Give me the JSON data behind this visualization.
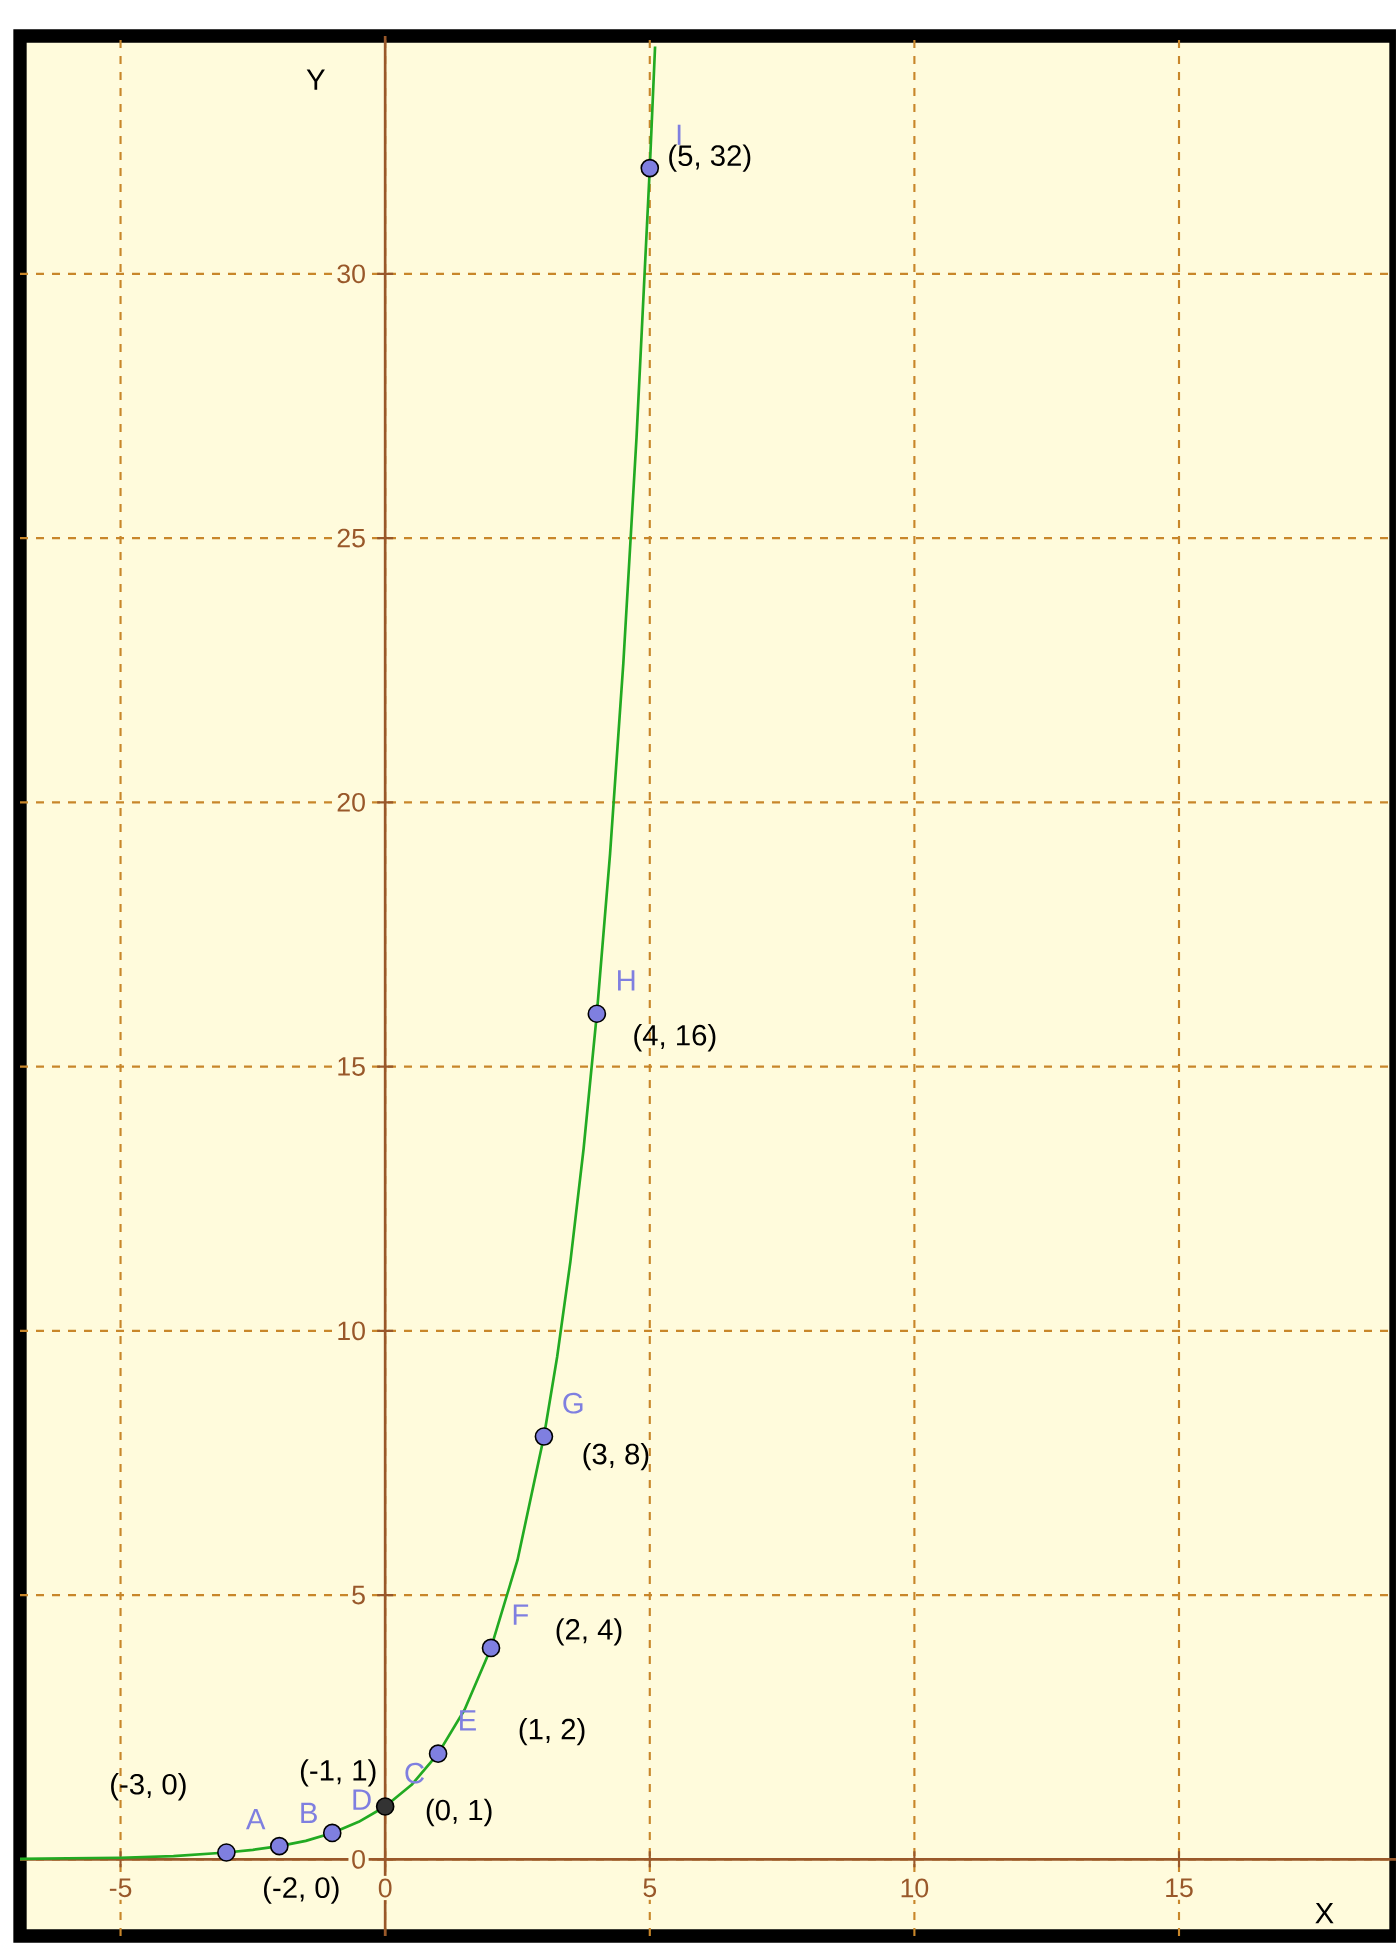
{
  "chart_data": {
    "type": "line",
    "xlabel": "X",
    "ylabel": "Y",
    "xlim": [
      -6.9,
      19.1
    ],
    "ylim": [
      -1.45,
      34.5
    ],
    "xticks": [
      -5,
      0,
      5,
      10,
      15
    ],
    "yticks": [
      0,
      5,
      10,
      15,
      20,
      25,
      30
    ],
    "grid": true,
    "series": [
      {
        "color": "#22aa22",
        "x": [
          -6.9,
          -6,
          -5,
          -4,
          -3,
          -2.5,
          -2,
          -1.5,
          -1,
          -0.5,
          0,
          0.5,
          1,
          1.5,
          2,
          2.5,
          3,
          3.25,
          3.5,
          3.75,
          4,
          4.25,
          4.5,
          4.75,
          5,
          5.1
        ],
        "values": [
          0.01,
          0.02,
          0.03,
          0.06,
          0.13,
          0.18,
          0.25,
          0.35,
          0.5,
          0.71,
          1,
          1.41,
          2,
          2.83,
          4,
          5.66,
          8,
          9.51,
          11.31,
          13.45,
          16,
          19.03,
          22.63,
          26.91,
          32,
          34.3
        ]
      },
      {
        "type": "scatter",
        "marker": "circle",
        "x": [
          -3,
          -2,
          -1,
          0,
          1,
          2,
          3,
          4,
          5
        ],
        "values": [
          0.13,
          0.25,
          0.5,
          1,
          2,
          4,
          8,
          16,
          32
        ],
        "colors": [
          "#7f7fe0",
          "#7f7fe0",
          "#7f7fe0",
          "#333333",
          "#7f7fe0",
          "#7f7fe0",
          "#7f7fe0",
          "#7f7fe0",
          "#7f7fe0"
        ],
        "color": "#7f7fe0",
        "value_labels": [
          "A",
          "B",
          "D",
          "C",
          "E",
          "F",
          "G",
          "H",
          "I"
        ]
      }
    ],
    "annotations": [
      {
        "text": "(-3, 0)",
        "x": -3,
        "y": 0.125
      },
      {
        "text": "(-2, 0)",
        "x": -2,
        "y": 0.25
      },
      {
        "text": "(-1, 1)",
        "x": -1,
        "y": 0.5
      },
      {
        "text": "(0, 1)",
        "x": 0,
        "y": 1
      },
      {
        "text": "(1, 2)",
        "x": 1,
        "y": 2
      },
      {
        "text": "(2, 4)",
        "x": 2,
        "y": 4
      },
      {
        "text": "(3, 8)",
        "x": 3,
        "y": 8
      },
      {
        "text": "(4, 16)",
        "x": 4,
        "y": 16
      },
      {
        "text": "(5, 32)",
        "x": 5,
        "y": 32
      }
    ]
  }
}
